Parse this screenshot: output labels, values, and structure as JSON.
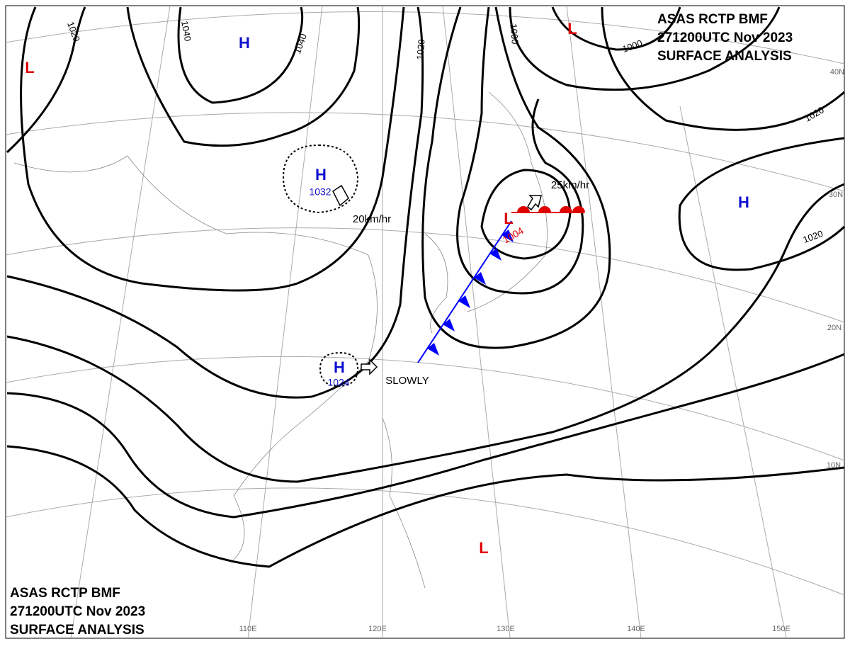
{
  "header": {
    "lines": [
      "ASAS   RCTP   BMF",
      "271200UTC   Nov   2023",
      "SURFACE  ANALYSIS"
    ]
  },
  "footer": {
    "lines": [
      "ASAS   RCTP   BMF",
      "271200UTC   Nov   2023",
      "SURFACE  ANALYSIS"
    ]
  },
  "high_centers": [
    {
      "label": "H"
    },
    {
      "label": "H",
      "pressure": "1032"
    },
    {
      "label": "H",
      "pressure": "1024"
    },
    {
      "label": "H"
    }
  ],
  "low_centers": [
    {
      "label": "L"
    },
    {
      "label": "L"
    },
    {
      "label": "L",
      "pressure": "1004"
    },
    {
      "label": "L"
    }
  ],
  "isobar_labels": [
    "1020",
    "1040",
    "1040",
    "1020",
    "1000",
    "1000",
    "1020",
    "1020"
  ],
  "motions": [
    "20km/hr",
    "25km/hr",
    "SLOWLY"
  ],
  "latitude_labels": [
    "40N",
    "30N",
    "20N",
    "10N"
  ],
  "longitude_labels": [
    "110E",
    "120E",
    "130E",
    "140E",
    "150E"
  ]
}
